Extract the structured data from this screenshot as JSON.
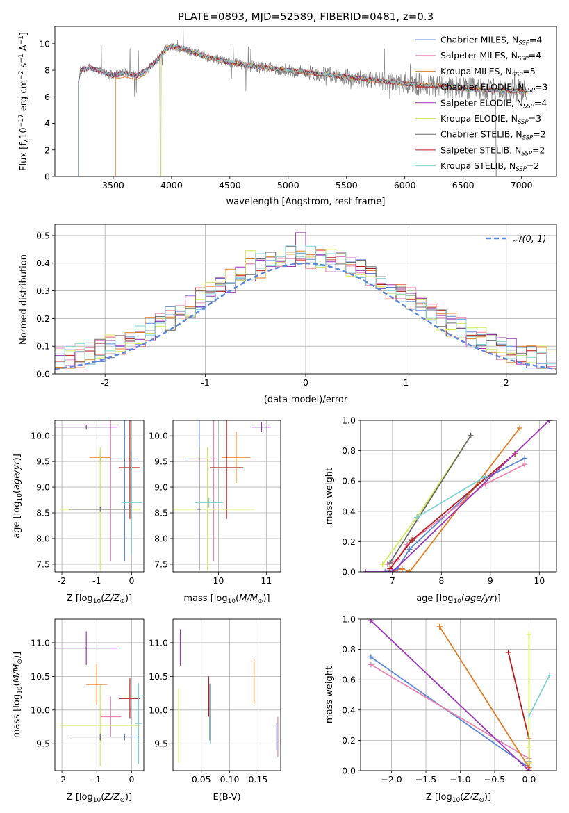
{
  "title": "PLATE=0893, MJD=52589, FIBERID=0481, z=0.3",
  "colors": {
    "c0": "#5b86d6",
    "c1": "#e883b2",
    "c2": "#e07b22",
    "c3": "#b71c1c",
    "c4": "#9b35b5",
    "c5": "#d4e95a",
    "c6": "#6a6a6a",
    "c7": "#b71c1c",
    "c8": "#7fd0d6",
    "data": "#808080",
    "normal": "#5b86d6"
  },
  "legend_spectrum": [
    {
      "text": "Chabrier MILES, N",
      "sub": "SSP",
      "tail": "=4",
      "color": "#5b86d6"
    },
    {
      "text": "Salpeter MILES, N",
      "sub": "SSP",
      "tail": "=4",
      "color": "#e883b2"
    },
    {
      "text": "Kroupa MILES, N",
      "sub": "SSP",
      "tail": "=5",
      "color": "#e07b22"
    },
    {
      "text": "Chabrier ELODIE, N",
      "sub": "SSP",
      "tail": "=3",
      "color": "#b71c1c"
    },
    {
      "text": "Salpeter ELODIE, N",
      "sub": "SSP",
      "tail": "=4",
      "color": "#9b35b5"
    },
    {
      "text": "Kroupa ELODIE, N",
      "sub": "SSP",
      "tail": "=3",
      "color": "#d4e95a"
    },
    {
      "text": "Chabrier STELIB, N",
      "sub": "SSP",
      "tail": "=2",
      "color": "#6a6a6a"
    },
    {
      "text": "Salpeter STELIB, N",
      "sub": "SSP",
      "tail": "=2",
      "color": "#b71c1c"
    },
    {
      "text": "Kroupa STELIB, N",
      "sub": "SSP",
      "tail": "=2",
      "color": "#7fd0d6"
    }
  ],
  "legend_hist": "𝒩(0, 1)",
  "chart_data": [
    {
      "type": "line",
      "name": "spectrum",
      "xlabel": "wavelength [Angstrom, rest frame]",
      "ylabel": "Flux [f_λ 10^-17 erg cm^-2 s^-1 A^-1]",
      "xlim": [
        3000,
        7300
      ],
      "ylim": [
        0,
        11.3
      ],
      "xticks": [
        3500,
        4000,
        4500,
        5000,
        5500,
        6000,
        6500,
        7000
      ],
      "yticks": [
        0,
        2,
        4,
        6,
        8,
        10
      ],
      "model_anchor": {
        "x": [
          3200,
          3220,
          3300,
          3400,
          3500,
          3600,
          3700,
          3800,
          3900,
          3950,
          4000,
          4100,
          4200,
          4300,
          4500,
          4700,
          5000,
          5200,
          5500,
          5800,
          6000,
          6300,
          6500,
          6800,
          7050
        ],
        "y": [
          7.0,
          8.0,
          8.2,
          7.9,
          7.6,
          7.8,
          7.6,
          8.1,
          9.0,
          9.6,
          9.8,
          9.6,
          9.3,
          9.0,
          8.6,
          8.3,
          8.0,
          7.8,
          7.5,
          7.2,
          7.0,
          6.8,
          6.6,
          6.5,
          6.4
        ]
      },
      "series_start": [
        3200,
        3200,
        3520,
        3200,
        3200,
        3910,
        3200,
        3200,
        3200
      ]
    },
    {
      "type": "step",
      "name": "residual histogram",
      "xlabel": "(data-model)/error",
      "ylabel": "Normed distribution",
      "xlim": [
        -2.5,
        2.5
      ],
      "ylim": [
        0,
        0.54
      ],
      "xticks": [
        -2,
        -1,
        0,
        1,
        2
      ],
      "yticks": [
        0.0,
        0.1,
        0.2,
        0.3,
        0.4,
        0.5
      ],
      "normal": {
        "mean": 0,
        "sigma": 1
      }
    },
    {
      "type": "errorbar",
      "name": "age vs Z",
      "xlabel": "Z [log10(Z/Z☉)]",
      "ylabel": "age [log10(age/yr)]",
      "xlim": [
        -2.2,
        0.35
      ],
      "ylim": [
        7.35,
        10.3
      ],
      "xticks": [
        -2,
        -1,
        0
      ],
      "yticks": [
        7.5,
        8.0,
        8.5,
        9.0,
        9.5,
        10.0
      ],
      "points": [
        {
          "c": "c0",
          "x": -0.2,
          "xe": 0.4,
          "y": 9.55,
          "ye": 2.0
        },
        {
          "c": "c1",
          "x": -0.6,
          "xe": 0.3,
          "y": 9.55,
          "ye": 2.0
        },
        {
          "c": "c2",
          "x": -0.9,
          "xe": 0.3,
          "y": 9.58,
          "ye": 0.12
        },
        {
          "c": "c3",
          "x": -0.05,
          "xe": 0.3,
          "y": 9.38,
          "ye": 1.0
        },
        {
          "c": "c4",
          "x": -1.3,
          "xe": 0.9,
          "y": 10.17,
          "ye": 0.05
        },
        {
          "c": "c5",
          "x": -0.9,
          "xe": 1.15,
          "y": 8.57,
          "ye": 1.2
        },
        {
          "c": "c6",
          "x": -0.9,
          "xe": 0.9,
          "y": 8.57,
          "ye": 0.05
        },
        {
          "c": "c8",
          "x": 0.0,
          "xe": 0.3,
          "y": 8.7,
          "ye": 1.0
        }
      ]
    },
    {
      "type": "errorbar",
      "name": "age vs mass",
      "xlabel": "mass [log10(M/M☉)]",
      "ylabel": "",
      "xlim": [
        9.05,
        11.3
      ],
      "ylim": [
        7.35,
        10.3
      ],
      "xticks": [
        10,
        11
      ],
      "yticks": [
        7.5,
        8.0,
        8.5,
        9.0,
        9.5,
        10.0
      ],
      "points": [
        {
          "c": "c0",
          "x": 9.6,
          "xe": 0.3,
          "y": 9.55,
          "ye": 2.0
        },
        {
          "c": "c1",
          "x": 9.9,
          "xe": 0.05,
          "y": 9.55,
          "ye": 2.0
        },
        {
          "c": "c2",
          "x": 10.37,
          "xe": 0.3,
          "y": 9.58,
          "ye": 0.5
        },
        {
          "c": "c3",
          "x": 10.17,
          "xe": 0.35,
          "y": 9.38,
          "ye": 1.0
        },
        {
          "c": "c4",
          "x": 10.9,
          "xe": 0.2,
          "y": 10.17,
          "ye": 0.1
        },
        {
          "c": "c5",
          "x": 9.77,
          "xe": 1.0,
          "y": 8.57,
          "ye": 1.2
        },
        {
          "c": "c6",
          "x": 9.6,
          "xe": 0.05,
          "y": 8.57,
          "ye": 1.2
        },
        {
          "c": "c8",
          "x": 9.8,
          "xe": 0.3,
          "y": 8.7,
          "ye": 0.1
        }
      ]
    },
    {
      "type": "line",
      "name": "mass weight vs age",
      "xlabel": "age [log10(age/yr)]",
      "ylabel": "mass weight",
      "xlim": [
        6.35,
        10.35
      ],
      "ylim": [
        0,
        1.0
      ],
      "xticks": [
        7,
        8,
        9,
        10
      ],
      "yticks": [
        0.0,
        0.2,
        0.4,
        0.6,
        0.8,
        1.0
      ],
      "series": [
        {
          "c": "c0",
          "x": [
            6.85,
            7.1,
            7.35,
            8.9,
            9.7
          ],
          "y": [
            0.0,
            0.02,
            0.15,
            0.62,
            0.75
          ]
        },
        {
          "c": "c1",
          "x": [
            6.9,
            7.1,
            7.3,
            8.9,
            9.7
          ],
          "y": [
            0.05,
            0.08,
            0.18,
            0.58,
            0.71
          ]
        },
        {
          "c": "c2",
          "x": [
            7.0,
            7.2,
            7.35,
            9.6
          ],
          "y": [
            0.0,
            0.02,
            0.0,
            0.95
          ]
        },
        {
          "c": "c3",
          "x": [
            6.95,
            7.4,
            9.5
          ],
          "y": [
            0.02,
            0.21,
            0.78
          ]
        },
        {
          "c": "c4",
          "x": [
            6.45,
            7.0,
            10.2
          ],
          "y": [
            0.0,
            0.0,
            1.0
          ]
        },
        {
          "c": "c5",
          "x": [
            6.8,
            7.5,
            8.6
          ],
          "y": [
            0.05,
            0.36,
            0.9
          ]
        },
        {
          "c": "c6",
          "x": [
            6.95,
            8.6
          ],
          "y": [
            0.06,
            0.9
          ]
        },
        {
          "c": "c8",
          "x": [
            7.5,
            8.9
          ],
          "y": [
            0.36,
            0.63
          ]
        }
      ]
    },
    {
      "type": "errorbar",
      "name": "mass vs Z",
      "xlabel": "Z [log10(Z/Z☉)]",
      "ylabel": "mass [log10(M/M☉)]",
      "xlim": [
        -2.2,
        0.35
      ],
      "ylim": [
        9.1,
        11.35
      ],
      "xticks": [
        -2,
        -1,
        0
      ],
      "yticks": [
        9.5,
        10.0,
        10.5,
        11.0
      ],
      "points": [
        {
          "c": "c0",
          "x": -0.2,
          "xe": 0.4,
          "y": 9.6,
          "ye": 0.05
        },
        {
          "c": "c1",
          "x": -0.6,
          "xe": 0.3,
          "y": 9.9,
          "ye": 0.3
        },
        {
          "c": "c2",
          "x": -1.0,
          "xe": 0.3,
          "y": 10.38,
          "ye": 0.3
        },
        {
          "c": "c3",
          "x": -0.05,
          "xe": 0.3,
          "y": 10.17,
          "ye": 0.3
        },
        {
          "c": "c4",
          "x": -1.3,
          "xe": 0.9,
          "y": 10.92,
          "ye": 0.25
        },
        {
          "c": "c5",
          "x": -0.9,
          "xe": 1.15,
          "y": 9.77,
          "ye": 0.6
        },
        {
          "c": "c6",
          "x": -0.9,
          "xe": 0.9,
          "y": 9.6,
          "ye": 0.05
        },
        {
          "c": "c8",
          "x": 0.2,
          "xe": 0.1,
          "y": 9.8,
          "ye": 0.6
        }
      ]
    },
    {
      "type": "errorbar",
      "name": "mass vs E(B-V)",
      "xlabel": "E(B-V)",
      "ylabel": "",
      "xlim": [
        0.0,
        0.19
      ],
      "ylim": [
        9.1,
        11.35
      ],
      "xticks": [
        0.05,
        0.1,
        0.15
      ],
      "yticks": [
        9.5,
        10.0,
        10.5,
        11.0
      ],
      "points": [
        {
          "c": "c0",
          "x": 0.183,
          "y": 9.6,
          "ye": 0.2
        },
        {
          "c": "c1",
          "x": 0.185,
          "y": 9.6,
          "ye": 0.3
        },
        {
          "c": "c2",
          "x": 0.143,
          "y": 10.42,
          "ye": 0.33
        },
        {
          "c": "c3",
          "x": 0.063,
          "y": 10.2,
          "ye": 0.3
        },
        {
          "c": "c4",
          "x": 0.013,
          "y": 10.93,
          "ye": 0.27
        },
        {
          "c": "c5",
          "x": 0.01,
          "y": 9.77,
          "ye": 0.55
        },
        {
          "c": "c6",
          "x": 0.065,
          "y": 9.97,
          "ye": 0.42
        },
        {
          "c": "c8",
          "x": 0.066,
          "y": 9.95,
          "ye": 0.45
        }
      ]
    },
    {
      "type": "line",
      "name": "mass weight vs Z",
      "xlabel": "Z [log10(Z/Z☉)]",
      "ylabel": "mass weight",
      "xlim": [
        -2.45,
        0.4
      ],
      "ylim": [
        0,
        1.0
      ],
      "xticks": [
        -2.0,
        -1.5,
        -1.0,
        -0.5,
        0.0
      ],
      "yticks": [
        0.0,
        0.2,
        0.4,
        0.6,
        0.8,
        1.0
      ],
      "series": [
        {
          "c": "c0",
          "x": [
            -2.3,
            0.0,
            0.0
          ],
          "y": [
            0.75,
            0.02,
            0.06
          ]
        },
        {
          "c": "c1",
          "x": [
            -2.3,
            0.0,
            0.0
          ],
          "y": [
            0.7,
            0.08,
            0.05
          ]
        },
        {
          "c": "c2",
          "x": [
            -1.3,
            0.0,
            0.0
          ],
          "y": [
            0.95,
            0.02,
            0.03
          ]
        },
        {
          "c": "c3",
          "x": [
            -0.3,
            0.0,
            0.0
          ],
          "y": [
            0.78,
            0.21,
            0.0
          ]
        },
        {
          "c": "c4",
          "x": [
            -2.3,
            0.0
          ],
          "y": [
            0.99,
            0.0
          ]
        },
        {
          "c": "c5",
          "x": [
            0.0,
            0.0,
            0.0
          ],
          "y": [
            0.9,
            0.15,
            0.05
          ]
        },
        {
          "c": "c8",
          "x": [
            0.0,
            0.3
          ],
          "y": [
            0.36,
            0.63
          ]
        }
      ]
    }
  ]
}
